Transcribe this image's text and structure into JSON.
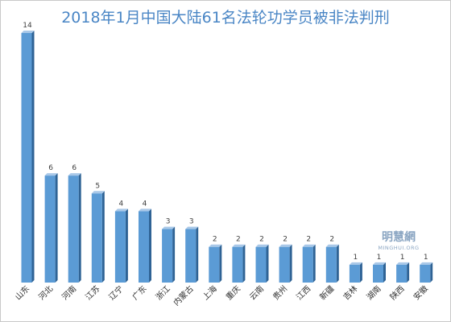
{
  "title": "2018年1月中国大陆61名法轮功学员被非法判刑",
  "watermark": {
    "cn": "明慧網",
    "en": "MINGHUI.ORG"
  },
  "colors": {
    "bar_front": "#5b9bd5",
    "bar_side": "#2f6395",
    "bar_top": "#a9c8e8",
    "title": "#4a86c5"
  },
  "chart_data": {
    "type": "bar",
    "title": "2018年1月中国大陆61名法轮功学员被非法判刑",
    "xlabel": "",
    "ylabel": "",
    "ylim": [
      0,
      14
    ],
    "grid": false,
    "legend": "none",
    "categories": [
      "山东",
      "河北",
      "河南",
      "江苏",
      "辽宁",
      "广东",
      "浙江",
      "内蒙古",
      "上海",
      "重庆",
      "云南",
      "贵州",
      "江西",
      "新疆",
      "吉林",
      "湖南",
      "陕西",
      "安徽"
    ],
    "values": [
      14,
      6,
      6,
      5,
      4,
      4,
      3,
      3,
      2,
      2,
      2,
      2,
      2,
      2,
      1,
      1,
      1,
      1
    ]
  }
}
